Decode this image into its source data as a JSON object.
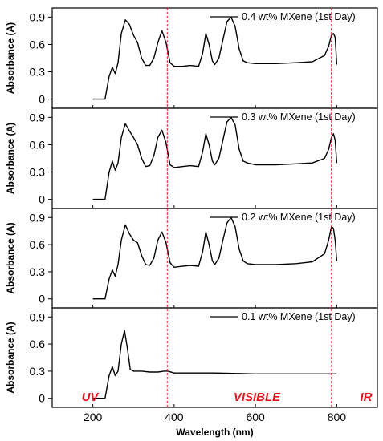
{
  "chart_data": {
    "type": "line",
    "xlabel": "Wavelength (nm)",
    "xlim": [
      100,
      900
    ],
    "x_ticks": [
      "200",
      "400",
      "600",
      "800"
    ],
    "ylabel": "Absorbance (A)",
    "ylim": [
      -0.1,
      1.0
    ],
    "y_ticks": [
      "0",
      "0.3",
      "0.6",
      "0.9"
    ],
    "region_lines": [
      383,
      787
    ],
    "region_labels": [
      "UV",
      "VISIBLE",
      "IR"
    ],
    "colors": {
      "series": "#000000",
      "region_line": "#e8141c",
      "region_label": "#e8141c"
    },
    "panels": [
      {
        "legend": "0.4 wt% MXene (1st Day)",
        "x": [
          200,
          230,
          240,
          248,
          255,
          262,
          270,
          280,
          290,
          300,
          310,
          320,
          330,
          340,
          350,
          360,
          370,
          380,
          390,
          400,
          420,
          440,
          460,
          470,
          478,
          486,
          494,
          500,
          510,
          520,
          530,
          540,
          550,
          560,
          570,
          580,
          600,
          650,
          700,
          740,
          770,
          780,
          787,
          792,
          796,
          800
        ],
        "values": [
          0.0,
          0.0,
          0.25,
          0.35,
          0.28,
          0.4,
          0.72,
          0.87,
          0.82,
          0.7,
          0.62,
          0.45,
          0.37,
          0.37,
          0.45,
          0.62,
          0.75,
          0.62,
          0.4,
          0.36,
          0.36,
          0.37,
          0.36,
          0.5,
          0.72,
          0.6,
          0.42,
          0.38,
          0.45,
          0.65,
          0.85,
          0.9,
          0.8,
          0.55,
          0.42,
          0.4,
          0.39,
          0.39,
          0.4,
          0.41,
          0.48,
          0.58,
          0.7,
          0.72,
          0.68,
          0.38
        ]
      },
      {
        "legend": "0.3 wt% MXene (1st Day)",
        "x": [
          200,
          230,
          240,
          248,
          255,
          262,
          270,
          280,
          290,
          300,
          310,
          320,
          330,
          340,
          350,
          360,
          370,
          380,
          390,
          400,
          420,
          440,
          460,
          470,
          478,
          486,
          494,
          500,
          510,
          520,
          530,
          540,
          550,
          560,
          570,
          580,
          600,
          650,
          700,
          740,
          770,
          780,
          787,
          792,
          796,
          800
        ],
        "values": [
          0.0,
          0.0,
          0.3,
          0.42,
          0.32,
          0.4,
          0.68,
          0.83,
          0.75,
          0.68,
          0.6,
          0.45,
          0.36,
          0.37,
          0.48,
          0.68,
          0.76,
          0.62,
          0.38,
          0.35,
          0.36,
          0.37,
          0.36,
          0.52,
          0.72,
          0.6,
          0.42,
          0.38,
          0.45,
          0.65,
          0.85,
          0.9,
          0.82,
          0.55,
          0.42,
          0.4,
          0.38,
          0.38,
          0.39,
          0.4,
          0.45,
          0.55,
          0.68,
          0.72,
          0.65,
          0.4
        ]
      },
      {
        "legend": "0.2 wt% MXene (1st Day)",
        "x": [
          200,
          230,
          240,
          248,
          255,
          262,
          270,
          280,
          290,
          300,
          310,
          320,
          330,
          340,
          350,
          360,
          370,
          380,
          390,
          400,
          420,
          440,
          460,
          470,
          478,
          486,
          494,
          500,
          510,
          520,
          530,
          540,
          550,
          560,
          570,
          580,
          600,
          650,
          700,
          740,
          770,
          780,
          787,
          792,
          796,
          800
        ],
        "values": [
          0.0,
          0.0,
          0.22,
          0.32,
          0.25,
          0.38,
          0.65,
          0.82,
          0.72,
          0.65,
          0.62,
          0.48,
          0.38,
          0.37,
          0.45,
          0.65,
          0.74,
          0.62,
          0.4,
          0.35,
          0.36,
          0.37,
          0.36,
          0.52,
          0.74,
          0.6,
          0.42,
          0.38,
          0.45,
          0.65,
          0.84,
          0.9,
          0.8,
          0.55,
          0.42,
          0.39,
          0.38,
          0.38,
          0.39,
          0.41,
          0.5,
          0.65,
          0.8,
          0.78,
          0.65,
          0.42
        ]
      },
      {
        "legend": "0.1 wt% MXene (1st Day)",
        "x": [
          200,
          230,
          240,
          248,
          255,
          262,
          270,
          278,
          285,
          292,
          300,
          310,
          320,
          340,
          360,
          375,
          385,
          400,
          500,
          600,
          700,
          800
        ],
        "values": [
          0.0,
          0.0,
          0.25,
          0.35,
          0.25,
          0.3,
          0.6,
          0.75,
          0.55,
          0.32,
          0.3,
          0.3,
          0.3,
          0.29,
          0.29,
          0.3,
          0.3,
          0.28,
          0.28,
          0.27,
          0.27,
          0.27
        ]
      }
    ]
  }
}
